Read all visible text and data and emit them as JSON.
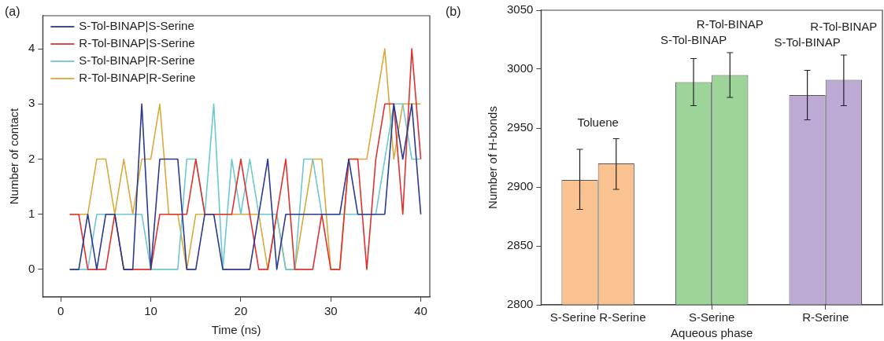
{
  "chart_data": [
    {
      "type": "line",
      "title": "(a)",
      "xlabel": "Time (ns)",
      "ylabel": "Number of contact",
      "x": [
        1,
        2,
        3,
        4,
        5,
        6,
        7,
        8,
        9,
        10,
        11,
        12,
        13,
        14,
        15,
        16,
        17,
        18,
        19,
        20,
        21,
        22,
        23,
        24,
        25,
        26,
        27,
        28,
        29,
        30,
        31,
        32,
        33,
        34,
        35,
        36,
        37,
        38,
        39,
        40
      ],
      "xlim": [
        -2,
        41
      ],
      "xticks": [
        0,
        10,
        20,
        30,
        40
      ],
      "ylim": [
        -0.5,
        4.6
      ],
      "yticks": [
        0,
        1,
        2,
        3,
        4
      ],
      "legend": "top left",
      "marker": "none",
      "grid": false,
      "series": [
        {
          "name": "S-Tol-BINAP|S-Serine",
          "color": "#2b3990",
          "values": [
            0,
            0,
            1,
            0,
            1,
            1,
            0,
            0,
            3,
            0,
            2,
            2,
            2,
            0,
            0,
            1,
            1,
            0,
            0,
            0,
            0,
            1,
            2,
            0,
            1,
            1,
            1,
            1,
            1,
            1,
            1,
            2,
            1,
            1,
            1,
            1,
            3,
            2,
            3,
            1
          ]
        },
        {
          "name": "R-Tol-BINAP|S-Serine",
          "color": "#e0312f",
          "values": [
            1,
            1,
            0,
            0,
            0,
            1,
            0,
            0,
            0,
            0,
            1,
            1,
            1,
            1,
            2,
            1,
            1,
            1,
            1,
            2,
            1,
            0,
            0,
            1,
            2,
            0,
            0,
            0,
            1,
            0,
            0,
            2,
            2,
            0,
            2,
            3,
            3,
            1,
            4,
            2
          ]
        },
        {
          "name": "S-Tol-BINAP|R-Serine",
          "color": "#6cc9d0",
          "values": [
            0,
            0,
            0,
            1,
            1,
            1,
            1,
            1,
            1,
            0,
            0,
            0,
            0,
            2,
            2,
            1,
            3,
            0,
            2,
            1,
            2,
            1,
            1,
            1,
            0,
            0,
            2,
            2,
            1,
            1,
            1,
            1,
            1,
            1,
            1,
            2,
            3,
            3,
            2,
            2
          ]
        },
        {
          "name": "R-Tol-BINAP|R-Serine",
          "color": "#d9a93a",
          "values": [
            1,
            1,
            1,
            2,
            2,
            1,
            2,
            1,
            2,
            2,
            3,
            1,
            1,
            0,
            1,
            1,
            1,
            1,
            1,
            1,
            1,
            1,
            0,
            1,
            0,
            0,
            1,
            2,
            2,
            0,
            0,
            2,
            2,
            2,
            3,
            4,
            2,
            3,
            3,
            3
          ]
        }
      ]
    },
    {
      "type": "bar",
      "title": "(b)",
      "xlabel": "Aqueous phase",
      "ylabel": "Number of H-bonds",
      "categories": [
        "S-Serine R-Serine",
        "S-Serine",
        "R-Serine"
      ],
      "ylim": [
        2800,
        3050
      ],
      "yticks": [
        2800,
        2850,
        2900,
        2950,
        3000,
        3050
      ],
      "grid": false,
      "legend": false,
      "series": [
        {
          "colors": [
            "#f9c290",
            "#9dd49a",
            "#bcaad5"
          ],
          "values": [
            2906,
            2989,
            2978
          ],
          "errors": [
            [
              2881,
              2932
            ],
            [
              2969,
              3009
            ],
            [
              2957,
              2999
            ]
          ]
        },
        {
          "colors": [
            "#f9c290",
            "#9dd49a",
            "#bcaad5"
          ],
          "values": [
            2920,
            2995,
            2991
          ],
          "errors": [
            [
              2898,
              2941
            ],
            [
              2976,
              3014
            ],
            [
              2969,
              3012
            ]
          ]
        }
      ],
      "annotations": [
        "Toluene",
        "S-Tol-BINAP",
        "R-Tol-BINAP",
        "S-Tol-BINAP",
        "R-Tol-BINAP"
      ]
    }
  ]
}
